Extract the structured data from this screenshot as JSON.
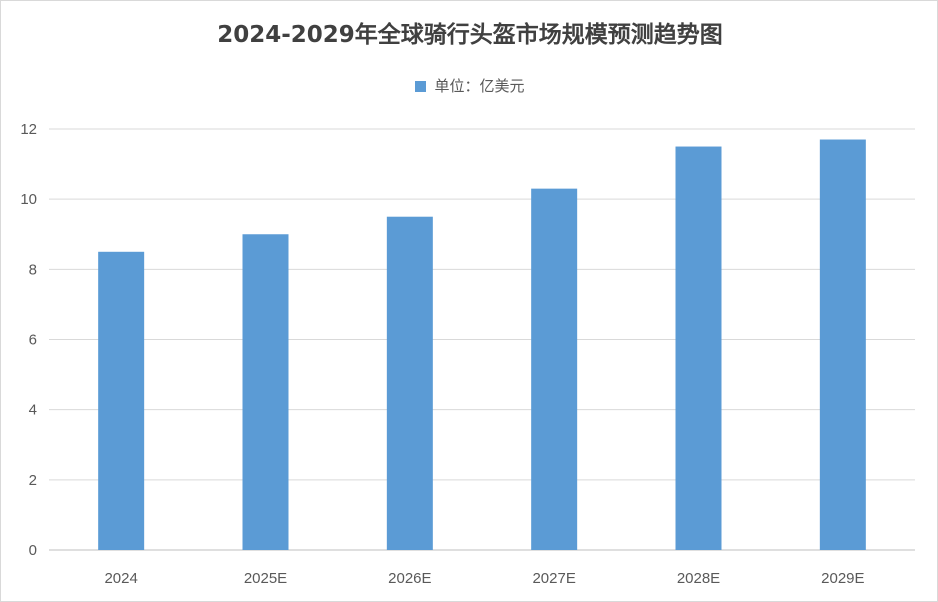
{
  "chart_data": {
    "type": "bar",
    "title": "2024-2029年全球骑行头盔市场规模预测趋势图",
    "legend": "单位：亿美元",
    "categories": [
      "2024",
      "2025E",
      "2026E",
      "2027E",
      "2028E",
      "2029E"
    ],
    "series": [
      {
        "name": "单位：亿美元",
        "values": [
          8.5,
          9.0,
          9.5,
          10.3,
          11.5,
          11.7
        ]
      }
    ],
    "ylim": [
      0,
      12
    ],
    "yticks": [
      0,
      2,
      4,
      6,
      8,
      10,
      12
    ],
    "grid": true,
    "legend_position": "top",
    "bar_color": "#5b9bd5"
  }
}
